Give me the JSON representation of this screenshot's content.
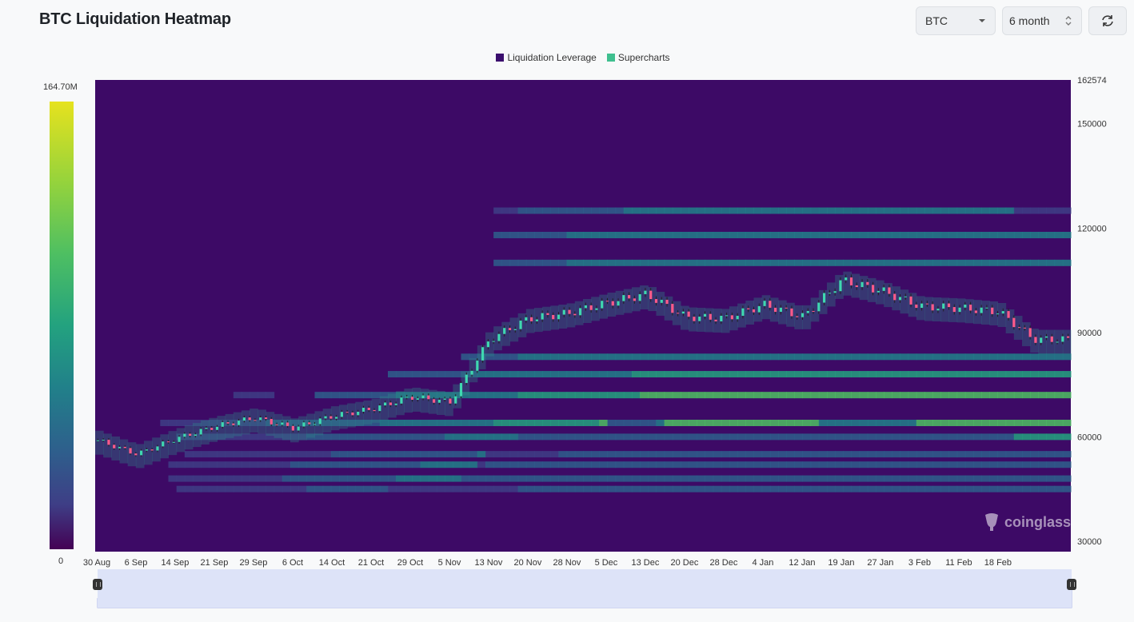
{
  "header": {
    "title": "BTC Liquidation Heatmap"
  },
  "controls": {
    "asset": "BTC",
    "range": "6 month"
  },
  "legend": [
    {
      "label": "Liquidation Leverage",
      "color": "#3b0f6e"
    },
    {
      "label": "Supercharts",
      "color": "#3fbf8f"
    }
  ],
  "colorbar": {
    "max_label": "164.70M",
    "min_label": "0"
  },
  "watermark": "coinglass",
  "chart_data": {
    "type": "heatmap",
    "x_ticks": [
      "30 Aug",
      "6 Sep",
      "14 Sep",
      "21 Sep",
      "29 Sep",
      "6 Oct",
      "14 Oct",
      "21 Oct",
      "29 Oct",
      "5 Nov",
      "13 Nov",
      "20 Nov",
      "28 Nov",
      "5 Dec",
      "13 Dec",
      "20 Dec",
      "28 Dec",
      "4 Jan",
      "12 Jan",
      "19 Jan",
      "27 Jan",
      "3 Feb",
      "11 Feb",
      "18 Feb"
    ],
    "y_ticks": [
      162574,
      150000,
      120000,
      90000,
      60000,
      30000
    ],
    "ylim": [
      27000,
      162574
    ],
    "price_series": [
      [
        "30 Aug",
        59000
      ],
      [
        "6 Sep",
        55000
      ],
      [
        "14 Sep",
        59500
      ],
      [
        "21 Sep",
        63000
      ],
      [
        "29 Sep",
        65500
      ],
      [
        "6 Oct",
        62500
      ],
      [
        "14 Oct",
        66000
      ],
      [
        "21 Oct",
        68000
      ],
      [
        "29 Oct",
        71500
      ],
      [
        "5 Nov",
        70000
      ],
      [
        "13 Nov",
        88000
      ],
      [
        "20 Nov",
        94000
      ],
      [
        "28 Nov",
        95500
      ],
      [
        "5 Dec",
        98500
      ],
      [
        "13 Dec",
        101000
      ],
      [
        "20 Dec",
        94500
      ],
      [
        "28 Dec",
        94000
      ],
      [
        "4 Jan",
        98000
      ],
      [
        "12 Jan",
        94500
      ],
      [
        "19 Jan",
        105000
      ],
      [
        "27 Jan",
        102000
      ],
      [
        "3 Feb",
        97500
      ],
      [
        "11 Feb",
        97000
      ],
      [
        "18 Feb",
        96000
      ],
      [
        "24 Feb",
        88000
      ]
    ],
    "bands": [
      {
        "price": 64000,
        "intensity": 0.75
      },
      {
        "price": 60000,
        "intensity": 0.6
      },
      {
        "price": 55000,
        "intensity": 0.55
      },
      {
        "price": 52000,
        "intensity": 0.65
      },
      {
        "price": 48000,
        "intensity": 0.7
      },
      {
        "price": 45000,
        "intensity": 0.6
      },
      {
        "price": 72000,
        "intensity": 0.7
      },
      {
        "price": 78000,
        "intensity": 0.55
      },
      {
        "price": 83000,
        "intensity": 0.5
      },
      {
        "price": 110000,
        "intensity": 0.45
      },
      {
        "price": 118000,
        "intensity": 0.45
      },
      {
        "price": 125000,
        "intensity": 0.4
      }
    ]
  }
}
